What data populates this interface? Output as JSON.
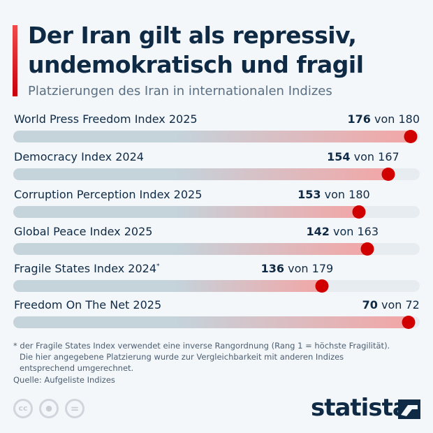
{
  "title": "Der Iran gilt als repressiv, undemokratisch und fragil",
  "subtitle": "Platzierungen des Iran in internationalen Indizes",
  "chart_data": {
    "type": "bar",
    "title": "Der Iran gilt als repressiv, undemokratisch und fragil",
    "subtitle": "Platzierungen des Iran in internationalen Indizes",
    "categories": [
      "World Press Freedom Index 2025",
      "Democracy Index 2024",
      "Corruption Perception Index 2025",
      "Global Peace Index 2025",
      "Fragile States Index 2024*",
      "Freedom On The Net 2025"
    ],
    "items": [
      {
        "label": "World Press Freedom Index 2025",
        "rank": 176,
        "total": 180,
        "rank_text": "176",
        "total_text": "von 180"
      },
      {
        "label": "Democracy Index 2024",
        "rank": 154,
        "total": 167,
        "rank_text": "154",
        "total_text": "von 167"
      },
      {
        "label": "Corruption Perception Index 2025",
        "rank": 153,
        "total": 180,
        "rank_text": "153",
        "total_text": "von 180"
      },
      {
        "label": "Global Peace Index 2025",
        "rank": 142,
        "total": 163,
        "rank_text": "142",
        "total_text": "von 163"
      },
      {
        "label": "Fragile States Index 2024",
        "footnote_mark": "*",
        "rank": 136,
        "total": 179,
        "rank_text": "136",
        "total_text": "von 179"
      },
      {
        "label": "Freedom On The Net 2025",
        "rank": 70,
        "total": 72,
        "rank_text": "70",
        "total_text": "von 72"
      }
    ],
    "colors": {
      "dot": "#d10000",
      "bar_start": "#c5d3db",
      "bar_end": "#f2a6a6",
      "track": "#e6ecf0"
    }
  },
  "footnote": [
    "* der Fragile States Index verwendet eine inverse Rangordnung (Rang 1 = höchste Fragilität).",
    "Die hier angegebene Platzierung wurde zur Vergleichbarkeit mit anderen Indizes",
    "entsprechend umgerechnet."
  ],
  "source": "Quelle: Aufgeliste Indizes",
  "license_icons": [
    "cc-icon",
    "person-icon",
    "equals-icon"
  ],
  "brand": "statista"
}
